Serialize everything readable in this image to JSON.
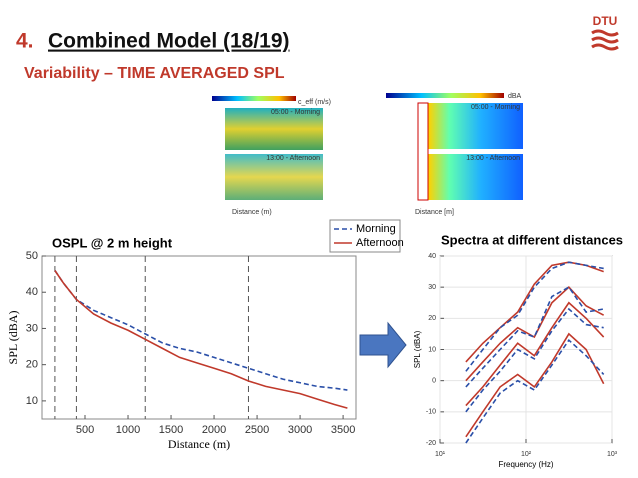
{
  "slide": {
    "number": "4.",
    "title": "Combined Model (18/19)",
    "subtitle": "Variability – TIME AVERAGED SPL",
    "logo": "DTU"
  },
  "insets": [
    {
      "colorbar_label": "c_eff (m/s)",
      "top_label": "05:00 - Morning",
      "bottom_label": "13:00 - Afternoon",
      "xlabel": "Distance (m)"
    },
    {
      "colorbar_label": "dBA",
      "top_label": "05:00 - Morning",
      "bottom_label": "13:00 - Afternoon",
      "xlabel": "Distance [m]"
    }
  ],
  "chart_data": [
    {
      "type": "line",
      "title": "OSPL @ 2 m height",
      "xlabel": "Distance (m)",
      "ylabel": "SPL (dBA)",
      "x": [
        150,
        250,
        400,
        600,
        800,
        1000,
        1200,
        1400,
        1600,
        1800,
        2000,
        2200,
        2400,
        2600,
        2800,
        3000,
        3200,
        3400,
        3550
      ],
      "series": [
        {
          "name": "Morning",
          "color": "#2a4fa8",
          "dash": true,
          "values": [
            46,
            42.5,
            38,
            35,
            33,
            31,
            28.5,
            26,
            24.5,
            23.5,
            22,
            20.5,
            19,
            17.5,
            16,
            15,
            14,
            13.5,
            13
          ]
        },
        {
          "name": "Afternoon",
          "color": "#c0392b",
          "dash": false,
          "values": [
            46,
            42.5,
            38,
            34,
            31.5,
            29.5,
            27,
            24.5,
            22,
            20.5,
            19,
            17.5,
            15.5,
            14,
            13,
            12,
            10.5,
            9,
            8
          ]
        }
      ],
      "vlines": [
        150,
        400,
        1200,
        2400
      ],
      "xlim": [
        0,
        3650
      ],
      "ylim": [
        5,
        50
      ],
      "xticks": [
        500,
        1000,
        1500,
        2000,
        2500,
        3000,
        3500
      ],
      "yticks": [
        10,
        20,
        30,
        40,
        50
      ],
      "legend": "upper right"
    },
    {
      "type": "line",
      "title": "Spectra at different distances",
      "xlabel": "Frequency (Hz)",
      "ylabel": "SPL (dBA)",
      "log_x": true,
      "x": [
        20,
        31.5,
        50,
        80,
        125,
        200,
        315,
        500,
        800
      ],
      "series": [
        {
          "color": "#c0392b",
          "dash": false,
          "values": [
            6,
            12,
            17,
            22,
            31,
            37,
            38,
            37,
            35
          ]
        },
        {
          "color": "#2a4fa8",
          "dash": true,
          "values": [
            3,
            10,
            17,
            21,
            30,
            36,
            38,
            37,
            36
          ]
        },
        {
          "color": "#c0392b",
          "dash": false,
          "values": [
            0,
            6,
            12,
            17,
            14,
            25,
            30,
            24,
            21
          ]
        },
        {
          "color": "#2a4fa8",
          "dash": true,
          "values": [
            -2,
            4,
            10,
            16,
            14,
            27,
            30,
            22,
            23
          ]
        },
        {
          "color": "#c0392b",
          "dash": false,
          "values": [
            -8,
            -2,
            5,
            12,
            8,
            17,
            25,
            20,
            14
          ]
        },
        {
          "color": "#2a4fa8",
          "dash": true,
          "values": [
            -10,
            -3,
            3,
            10,
            7,
            16,
            23,
            18,
            17
          ]
        },
        {
          "color": "#c0392b",
          "dash": false,
          "values": [
            -18,
            -10,
            -2,
            2,
            -2,
            6,
            15,
            10,
            -1
          ]
        },
        {
          "color": "#2a4fa8",
          "dash": true,
          "values": [
            -20,
            -12,
            -4,
            0,
            -3,
            5,
            13,
            8,
            2
          ]
        }
      ],
      "xlim": [
        10,
        1000
      ],
      "ylim": [
        -20,
        40
      ],
      "xticks": [
        {
          "value": 10,
          "label": "10¹"
        },
        {
          "value": 100,
          "label": "10²"
        },
        {
          "value": 1000,
          "label": "10³"
        }
      ],
      "yticks": [
        -20,
        -10,
        0,
        10,
        20,
        30,
        40
      ],
      "grid": true
    }
  ]
}
